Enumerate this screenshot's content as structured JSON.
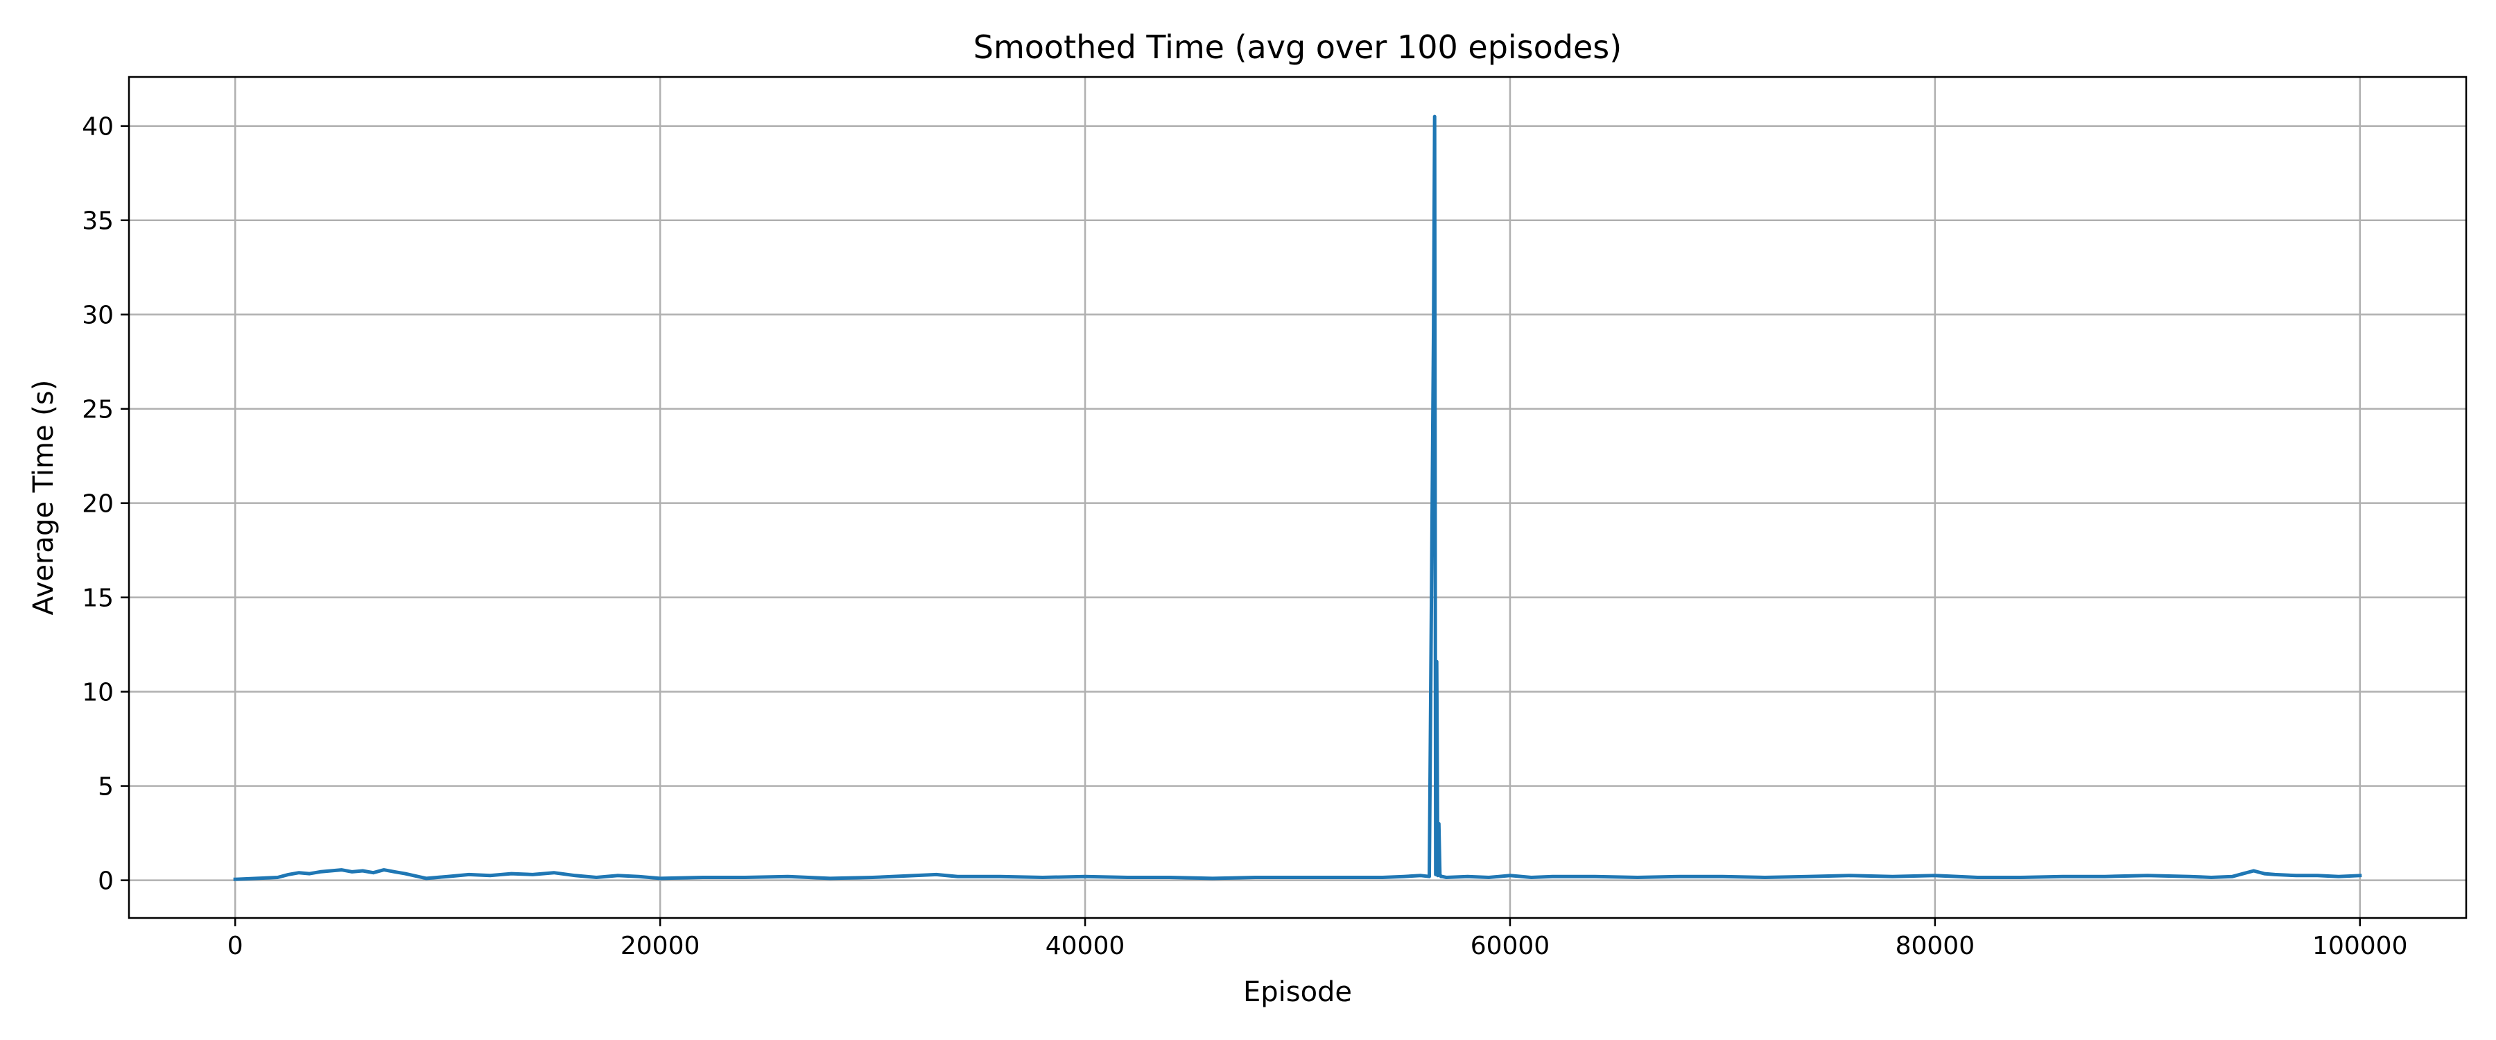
{
  "chart_data": {
    "type": "line",
    "title": "Smoothed Time (avg over 100 episodes)",
    "xlabel": "Episode",
    "ylabel": "Average Time (s)",
    "xlim": [
      -5000,
      105000
    ],
    "ylim": [
      -2,
      42.6
    ],
    "xticks": [
      0,
      20000,
      40000,
      60000,
      80000,
      100000
    ],
    "yticks": [
      0,
      5,
      10,
      15,
      20,
      25,
      30,
      35,
      40
    ],
    "grid": true,
    "line_color": "#1f77b4",
    "grid_color": "#b0b0b0",
    "series": [
      {
        "x": [
          0,
          1000,
          2000,
          2500,
          3000,
          3500,
          4000,
          4500,
          5000,
          5500,
          6000,
          6500,
          7000,
          7500,
          8000,
          9000,
          10000,
          11000,
          12000,
          13000,
          14000,
          15000,
          16000,
          17000,
          18000,
          19000,
          20000,
          22000,
          24000,
          26000,
          28000,
          30000,
          32000,
          33000,
          34000,
          36000,
          38000,
          40000,
          42000,
          44000,
          46000,
          48000,
          50000,
          52000,
          54000,
          55000,
          55800,
          56200,
          56400,
          56450,
          56500,
          56550,
          56600,
          56650,
          56700,
          56750,
          56800,
          57000,
          58000,
          59000,
          60000,
          61000,
          62000,
          64000,
          66000,
          68000,
          70000,
          72000,
          74000,
          76000,
          78000,
          80000,
          82000,
          84000,
          86000,
          88000,
          90000,
          92000,
          93000,
          94000,
          94500,
          95000,
          95500,
          96000,
          97000,
          98000,
          99000,
          100000
        ],
        "values": [
          0.05,
          0.1,
          0.15,
          0.3,
          0.4,
          0.35,
          0.45,
          0.5,
          0.55,
          0.45,
          0.5,
          0.4,
          0.55,
          0.45,
          0.35,
          0.1,
          0.2,
          0.3,
          0.25,
          0.35,
          0.3,
          0.4,
          0.25,
          0.15,
          0.25,
          0.2,
          0.1,
          0.15,
          0.15,
          0.2,
          0.1,
          0.15,
          0.25,
          0.3,
          0.2,
          0.2,
          0.15,
          0.2,
          0.15,
          0.15,
          0.1,
          0.15,
          0.15,
          0.15,
          0.15,
          0.2,
          0.25,
          0.2,
          29.3,
          40.5,
          0.3,
          11.6,
          0.25,
          3.0,
          0.3,
          0.2,
          0.2,
          0.15,
          0.2,
          0.15,
          0.25,
          0.15,
          0.2,
          0.2,
          0.15,
          0.2,
          0.2,
          0.15,
          0.2,
          0.25,
          0.2,
          0.25,
          0.15,
          0.15,
          0.2,
          0.2,
          0.25,
          0.2,
          0.15,
          0.2,
          0.35,
          0.5,
          0.35,
          0.3,
          0.25,
          0.25,
          0.2,
          0.25
        ]
      }
    ]
  }
}
